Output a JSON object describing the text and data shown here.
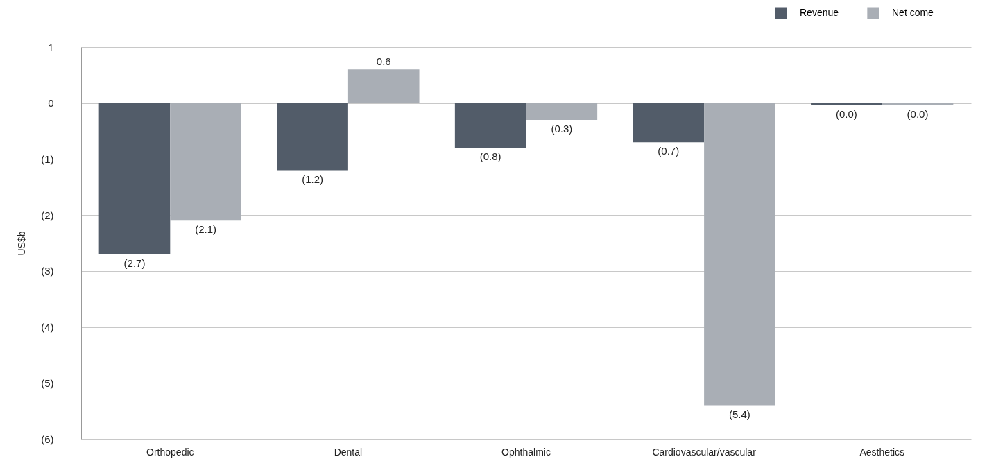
{
  "chart_data": {
    "type": "bar",
    "ylabel": "US$b",
    "categories": [
      "Orthopedic",
      "Dental",
      "Ophthalmic",
      "Cardiovascular/vascular",
      "Aesthetics"
    ],
    "series": [
      {
        "name": "Revenue",
        "color": "#525c69",
        "values": [
          -2.7,
          -1.2,
          -0.8,
          -0.7,
          -0.04
        ],
        "value_labels": [
          "(2.7)",
          "(1.2)",
          "(0.8)",
          "(0.7)",
          "(0.0)"
        ]
      },
      {
        "name": "Net come",
        "color": "#a9aeb5",
        "values": [
          -2.1,
          0.6,
          -0.3,
          -5.4,
          -0.04
        ],
        "value_labels": [
          "(2.1)",
          "0.6",
          "(0.3)",
          "(5.4)",
          "(0.0)"
        ]
      }
    ],
    "ylim": [
      -6,
      1
    ],
    "yticks": [
      {
        "value": -6,
        "label": "(6)"
      },
      {
        "value": -5,
        "label": "(5)"
      },
      {
        "value": -4,
        "label": "(4)"
      },
      {
        "value": -3,
        "label": "(3)"
      },
      {
        "value": -2,
        "label": "(2)"
      },
      {
        "value": -1,
        "label": "(1)"
      },
      0,
      1
    ],
    "grid": "y",
    "legend": "top right"
  }
}
